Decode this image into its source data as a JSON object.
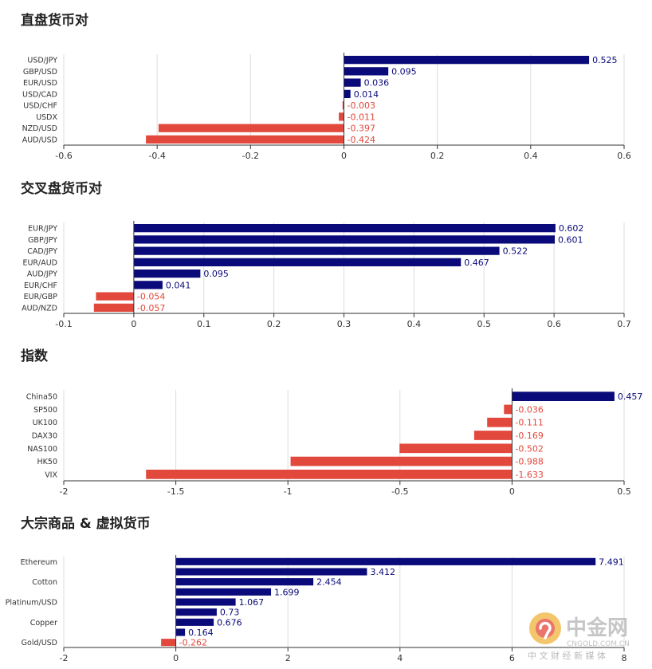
{
  "colors": {
    "positive": "#0a0a7a",
    "negative": "#e2483c",
    "grid": "#dddddd",
    "axis": "#333333",
    "title": "#222222"
  },
  "sections": [
    {
      "title": "直盘货币对"
    },
    {
      "title": "交叉盘货币对"
    },
    {
      "title": "指数"
    },
    {
      "title": "大宗商品 & 虚拟货币"
    }
  ],
  "watermark": {
    "brand": "中金网",
    "domain": "CNGOLD.COM.CN",
    "tagline": "中 文 财 经 新 媒 体",
    "icon": "gold-circle-logo-icon"
  },
  "chart_data": [
    {
      "type": "bar",
      "orientation": "horizontal",
      "title": "直盘货币对",
      "categories": [
        "USD/JPY",
        "GBP/USD",
        "EUR/USD",
        "USD/CAD",
        "USD/CHF",
        "USDX",
        "NZD/USD",
        "AUD/USD"
      ],
      "values": [
        0.525,
        0.095,
        0.036,
        0.014,
        -0.003,
        -0.011,
        -0.397,
        -0.424
      ],
      "labels": [
        "0.525",
        "0.095",
        "0.036",
        "0.014",
        "-0.003",
        "-0.011",
        "-0.397",
        "-0.424"
      ],
      "xlim": [
        -0.6,
        0.6
      ],
      "ticks": [
        -0.6,
        -0.4,
        -0.2,
        0,
        0.2,
        0.4,
        0.6
      ],
      "tick_labels": [
        "-0.6",
        "-0.4",
        "-0.2",
        "0",
        "0.2",
        "0.4",
        "0.6"
      ],
      "category_labels_every": 1,
      "grid": true
    },
    {
      "type": "bar",
      "orientation": "horizontal",
      "title": "交叉盘货币对",
      "categories": [
        "EUR/JPY",
        "GBP/JPY",
        "CAD/JPY",
        "EUR/AUD",
        "AUD/JPY",
        "EUR/CHF",
        "EUR/GBP",
        "AUD/NZD"
      ],
      "values": [
        0.602,
        0.601,
        0.522,
        0.467,
        0.095,
        0.041,
        -0.054,
        -0.057
      ],
      "labels": [
        "0.602",
        "0.601",
        "0.522",
        "0.467",
        "0.095",
        "0.041",
        "-0.054",
        "-0.057"
      ],
      "xlim": [
        -0.1,
        0.7
      ],
      "ticks": [
        -0.1,
        0,
        0.1,
        0.2,
        0.3,
        0.4,
        0.5,
        0.6,
        0.7
      ],
      "tick_labels": [
        "-0.1",
        "0",
        "0.1",
        "0.2",
        "0.3",
        "0.4",
        "0.5",
        "0.6",
        "0.7"
      ],
      "category_labels_every": 1,
      "grid": true
    },
    {
      "type": "bar",
      "orientation": "horizontal",
      "title": "指数",
      "categories": [
        "China50",
        "SP500",
        "UK100",
        "DAX30",
        "NAS100",
        "HK50",
        "VIX"
      ],
      "values": [
        0.457,
        -0.036,
        -0.111,
        -0.169,
        -0.502,
        -0.988,
        -1.633
      ],
      "labels": [
        "0.457",
        "-0.036",
        "-0.111",
        "-0.169",
        "-0.502",
        "-0.988",
        "-1.633"
      ],
      "xlim": [
        -2,
        0.5
      ],
      "ticks": [
        -2,
        -1.5,
        -1,
        -0.5,
        0,
        0.5
      ],
      "tick_labels": [
        "-2",
        "-1.5",
        "-1",
        "-0.5",
        "0",
        "0.5"
      ],
      "category_labels_every": 1,
      "grid": true
    },
    {
      "type": "bar",
      "orientation": "horizontal",
      "title": "大宗商品 & 虚拟货币",
      "categories": [
        "Ethereum",
        "",
        "Cotton",
        "",
        "Platinum/USD",
        "",
        "Copper",
        "",
        "Gold/USD"
      ],
      "values": [
        7.491,
        3.412,
        2.454,
        1.699,
        1.067,
        0.73,
        0.676,
        0.164,
        -0.262
      ],
      "labels": [
        "7.491",
        "3.412",
        "2.454",
        "1.699",
        "1.067",
        "0.73",
        "0.676",
        "0.164",
        "-0.262"
      ],
      "xlim": [
        -2,
        8
      ],
      "ticks": [
        -2,
        0,
        2,
        4,
        6,
        8
      ],
      "tick_labels": [
        "-2",
        "0",
        "2",
        "4",
        "6",
        "8"
      ],
      "category_labels_every": 2,
      "grid": true
    }
  ]
}
